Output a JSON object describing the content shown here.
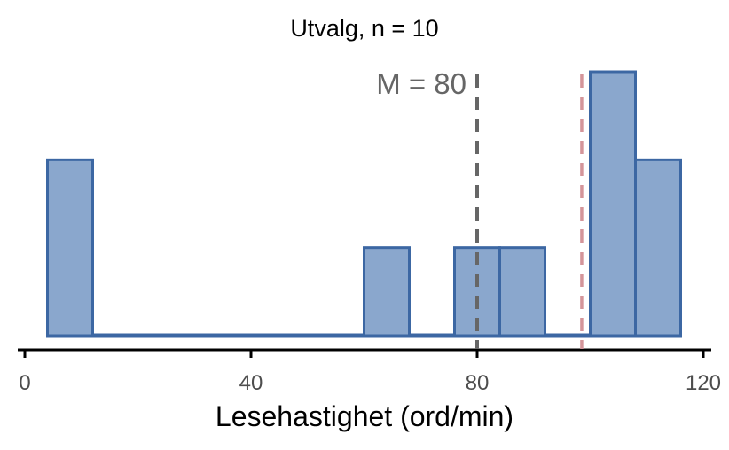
{
  "chart_data": {
    "type": "bar",
    "title": "Utvalg, n = 10",
    "xlabel": "Lesehastighet (ord/min)",
    "ylabel": "",
    "xlim": [
      -1,
      121
    ],
    "xticks": [
      0,
      40,
      80,
      120
    ],
    "bin_width": 8,
    "bins": [
      {
        "x0": 4,
        "x1": 12,
        "count": 2
      },
      {
        "x0": 12,
        "x1": 20,
        "count": 0
      },
      {
        "x0": 20,
        "x1": 28,
        "count": 0
      },
      {
        "x0": 28,
        "x1": 36,
        "count": 0
      },
      {
        "x0": 36,
        "x1": 44,
        "count": 0
      },
      {
        "x0": 44,
        "x1": 52,
        "count": 0
      },
      {
        "x0": 52,
        "x1": 60,
        "count": 0
      },
      {
        "x0": 60,
        "x1": 68,
        "count": 1
      },
      {
        "x0": 68,
        "x1": 76,
        "count": 0
      },
      {
        "x0": 76,
        "x1": 84,
        "count": 1
      },
      {
        "x0": 84,
        "x1": 92,
        "count": 1
      },
      {
        "x0": 92,
        "x1": 100,
        "count": 0
      },
      {
        "x0": 100,
        "x1": 108,
        "count": 3
      },
      {
        "x0": 108,
        "x1": 116,
        "count": 2
      }
    ],
    "ylim": [
      0,
      3
    ],
    "mean_line": {
      "value": 80,
      "label": "M = 80",
      "color": "#666666"
    },
    "reference_line": {
      "value": 98.5,
      "color": "#d4959a"
    },
    "bar_fill": "#8aa7cd",
    "bar_stroke": "#3c67a3",
    "grid": false,
    "legend": "none"
  }
}
